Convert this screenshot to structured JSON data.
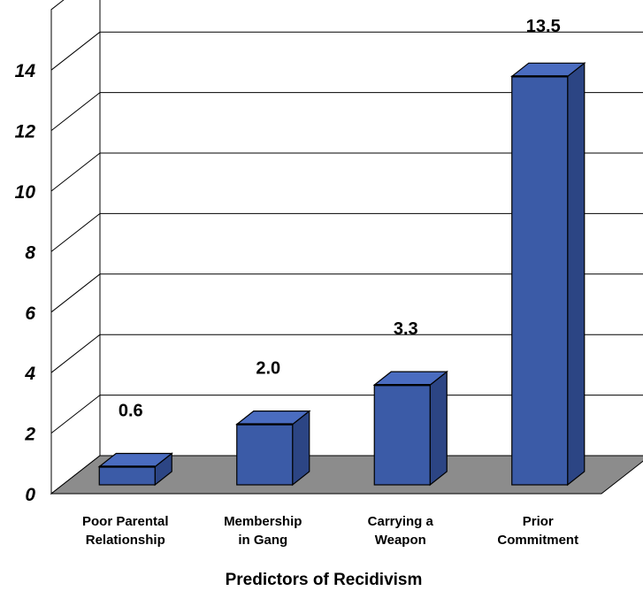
{
  "chart_data": {
    "type": "bar",
    "style": "3d-column",
    "categories": [
      [
        "Poor Parental",
        "Relationship"
      ],
      [
        "Membership",
        "in Gang"
      ],
      [
        "Carrying a",
        "Weapon"
      ],
      [
        "Prior",
        "Commitment"
      ]
    ],
    "values": [
      0.6,
      2.0,
      3.3,
      13.5
    ],
    "data_labels": [
      "0.6",
      "2.0",
      "3.3",
      "13.5"
    ],
    "xlabel": "Predictors of Recidivism",
    "ylabel": "",
    "ylim": [
      0,
      14
    ],
    "yticks": [
      "0",
      "2",
      "4",
      "6",
      "8",
      "10",
      "12",
      "14"
    ],
    "grid": true,
    "colors": {
      "bar_front": "#3b5ba7",
      "bar_top": "#4a6cc0",
      "bar_side": "#2c4584",
      "floor": "#8c8c8c",
      "wall": "#ffffff",
      "gridline": "#000000"
    }
  }
}
